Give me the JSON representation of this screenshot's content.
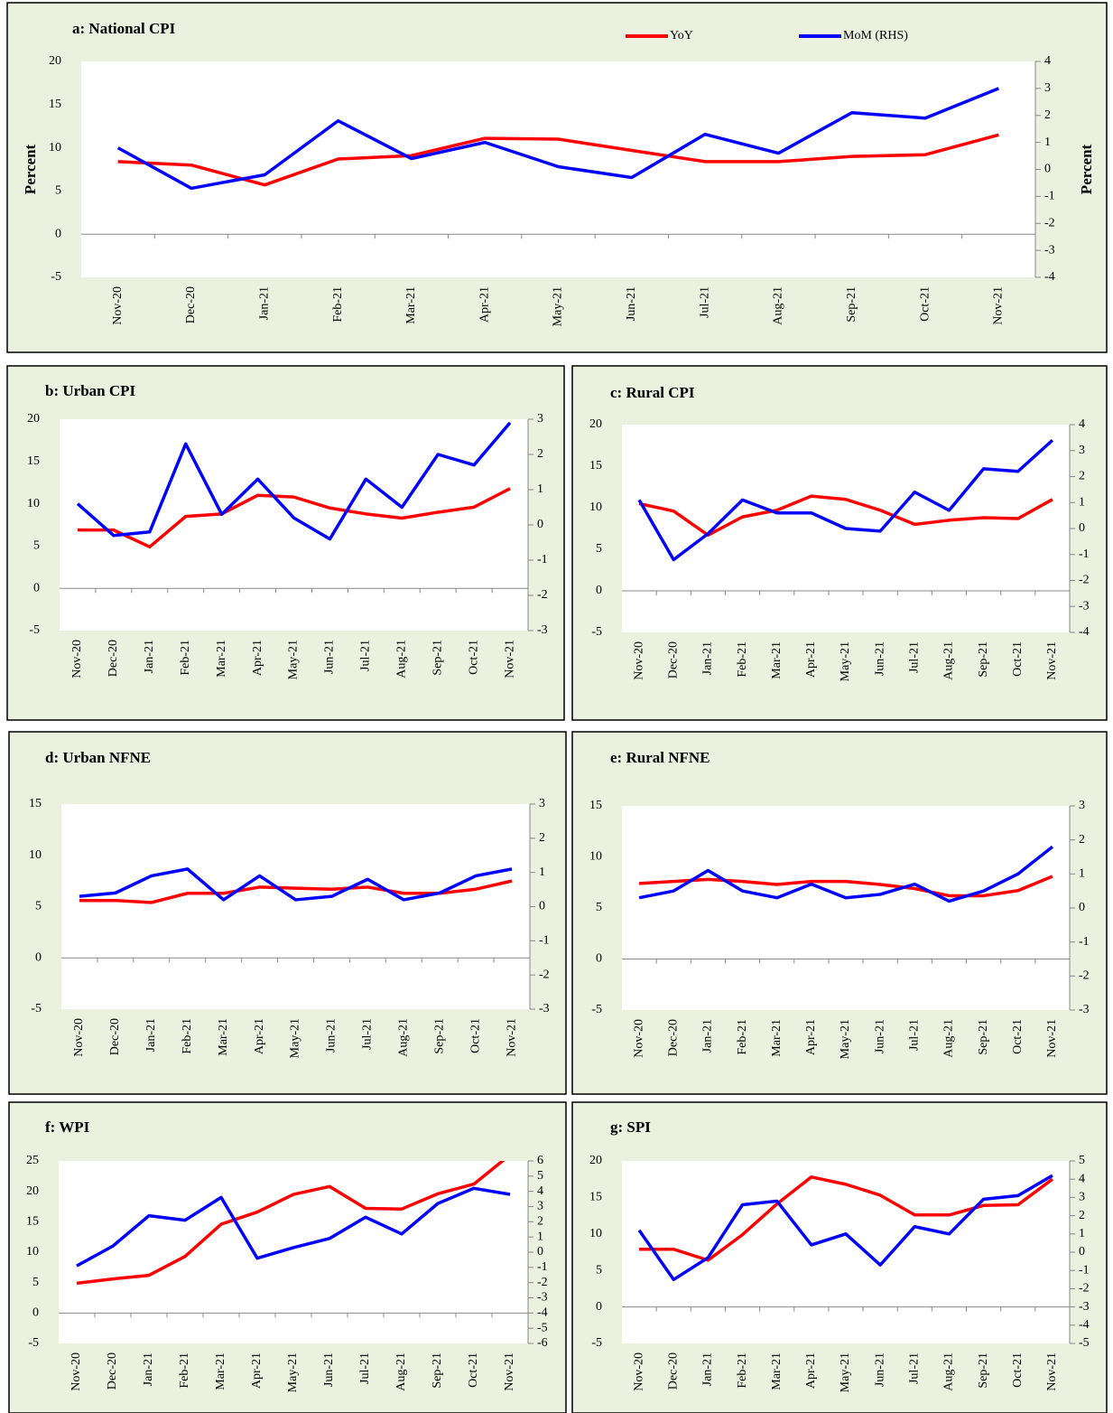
{
  "chart_data": [
    {
      "type": "line",
      "title": "a: National CPI",
      "y_label": "Percent",
      "y2_label": "Percent",
      "legend": "top",
      "categories": [
        "Nov-20",
        "Dec-20",
        "Jan-21",
        "Feb-21",
        "Mar-21",
        "Apr-21",
        "May-21",
        "Jun-21",
        "Jul-21",
        "Aug-21",
        "Sep-21",
        "Oct-21",
        "Nov-21"
      ],
      "series": [
        {
          "name": "YoY",
          "color": "#ff0000",
          "values": [
            8.4,
            8.0,
            5.7,
            8.7,
            9.1,
            11.1,
            11.0,
            9.7,
            8.4,
            8.4,
            9.0,
            9.2,
            11.5
          ]
        },
        {
          "name": "MoM (RHS)",
          "color": "#0000ff",
          "axis": "y2",
          "values": [
            0.8,
            -0.7,
            -0.2,
            1.8,
            0.4,
            1.0,
            0.1,
            -0.3,
            1.3,
            0.6,
            2.1,
            1.9,
            3.0
          ]
        }
      ],
      "ylim": [
        -5,
        20
      ],
      "yticks": [
        -5,
        0,
        5,
        10,
        15,
        20
      ],
      "y2lim": [
        -4,
        4
      ],
      "y2ticks": [
        -4,
        -3,
        -2,
        -1,
        0,
        1,
        2,
        3,
        4
      ]
    },
    {
      "type": "line",
      "title": "b: Urban CPI",
      "categories": [
        "Nov-20",
        "Dec-20",
        "Jan-21",
        "Feb-21",
        "Mar-21",
        "Apr-21",
        "May-21",
        "Jun-21",
        "Jul-21",
        "Aug-21",
        "Sep-21",
        "Oct-21",
        "Nov-21"
      ],
      "series": [
        {
          "color": "#ff0000",
          "values": [
            6.9,
            6.9,
            4.9,
            8.5,
            8.8,
            11.0,
            10.8,
            9.5,
            8.8,
            8.3,
            9.0,
            9.6,
            11.8
          ]
        },
        {
          "color": "#0000ff",
          "axis": "y2",
          "values": [
            0.6,
            -0.3,
            -0.2,
            2.3,
            0.3,
            1.3,
            0.2,
            -0.4,
            1.3,
            0.5,
            2.0,
            1.7,
            2.9
          ]
        }
      ],
      "ylim": [
        -5,
        20
      ],
      "yticks": [
        -5,
        0,
        5,
        10,
        15,
        20
      ],
      "y2lim": [
        -3,
        3
      ],
      "y2ticks": [
        -3,
        -2,
        -1,
        0,
        1,
        2,
        3
      ]
    },
    {
      "type": "line",
      "title": "c: Rural CPI",
      "categories": [
        "Nov-20",
        "Dec-20",
        "Jan-21",
        "Feb-21",
        "Mar-21",
        "Apr-21",
        "May-21",
        "Jun-21",
        "Jul-21",
        "Aug-21",
        "Sep-21",
        "Oct-21",
        "Nov-21"
      ],
      "series": [
        {
          "color": "#ff0000",
          "values": [
            10.5,
            9.6,
            6.7,
            8.9,
            9.7,
            11.4,
            11.0,
            9.7,
            8.0,
            8.5,
            8.8,
            8.7,
            11.0
          ]
        },
        {
          "color": "#0000ff",
          "axis": "y2",
          "values": [
            1.1,
            -1.2,
            -0.2,
            1.1,
            0.6,
            0.6,
            0.0,
            -0.1,
            1.4,
            0.7,
            2.3,
            2.2,
            3.4
          ]
        }
      ],
      "ylim": [
        -5,
        20
      ],
      "yticks": [
        -5,
        0,
        5,
        10,
        15,
        20
      ],
      "y2lim": [
        -4,
        4
      ],
      "y2ticks": [
        -4,
        -3,
        -2,
        -1,
        0,
        1,
        2,
        3,
        4
      ]
    },
    {
      "type": "line",
      "title": "d: Urban NFNE",
      "categories": [
        "Nov-20",
        "Dec-20",
        "Jan-21",
        "Feb-21",
        "Mar-21",
        "Apr-21",
        "May-21",
        "Jun-21",
        "Jul-21",
        "Aug-21",
        "Sep-21",
        "Oct-21",
        "Nov-21"
      ],
      "series": [
        {
          "color": "#ff0000",
          "values": [
            5.6,
            5.6,
            5.4,
            6.3,
            6.3,
            6.9,
            6.8,
            6.7,
            6.9,
            6.3,
            6.3,
            6.7,
            7.5
          ]
        },
        {
          "color": "#0000ff",
          "axis": "y2",
          "values": [
            0.3,
            0.4,
            0.9,
            1.1,
            0.2,
            0.9,
            0.2,
            0.3,
            0.8,
            0.2,
            0.4,
            0.9,
            1.1
          ]
        }
      ],
      "ylim": [
        -5,
        15
      ],
      "yticks": [
        -5,
        0,
        5,
        10,
        15
      ],
      "y2lim": [
        -3,
        3
      ],
      "y2ticks": [
        -3,
        -2,
        -1,
        0,
        1,
        2,
        3
      ]
    },
    {
      "type": "line",
      "title": "e: Rural NFNE",
      "categories": [
        "Nov-20",
        "Dec-20",
        "Jan-21",
        "Feb-21",
        "Mar-21",
        "Apr-21",
        "May-21",
        "Jun-21",
        "Jul-21",
        "Aug-21",
        "Sep-21",
        "Oct-21",
        "Nov-21"
      ],
      "series": [
        {
          "color": "#ff0000",
          "values": [
            7.4,
            7.6,
            7.8,
            7.6,
            7.3,
            7.6,
            7.6,
            7.3,
            6.9,
            6.2,
            6.2,
            6.7,
            8.1
          ]
        },
        {
          "color": "#0000ff",
          "axis": "y2",
          "values": [
            0.3,
            0.5,
            1.1,
            0.5,
            0.3,
            0.7,
            0.3,
            0.4,
            0.7,
            0.2,
            0.5,
            1.0,
            1.8
          ]
        }
      ],
      "ylim": [
        -5,
        15
      ],
      "yticks": [
        -5,
        0,
        5,
        10,
        15
      ],
      "y2lim": [
        -3,
        3
      ],
      "y2ticks": [
        -3,
        -2,
        -1,
        0,
        1,
        2,
        3
      ]
    },
    {
      "type": "line",
      "title": "f: WPI",
      "categories": [
        "Nov-20",
        "Dec-20",
        "Jan-21",
        "Feb-21",
        "Mar-21",
        "Apr-21",
        "May-21",
        "Jun-21",
        "Jul-21",
        "Aug-21",
        "Sep-21",
        "Oct-21",
        "Nov-21"
      ],
      "series": [
        {
          "color": "#ff0000",
          "values": [
            4.9,
            5.6,
            6.2,
            9.3,
            14.6,
            16.6,
            19.5,
            20.8,
            17.2,
            17.1,
            19.6,
            21.2,
            26.0
          ]
        },
        {
          "color": "#0000ff",
          "axis": "y2",
          "values": [
            -0.9,
            0.4,
            2.4,
            2.1,
            3.6,
            -0.4,
            0.3,
            0.9,
            2.3,
            1.2,
            3.2,
            4.2,
            3.8
          ]
        }
      ],
      "ylim": [
        -5,
        25
      ],
      "yticks": [
        -5,
        0,
        5,
        10,
        15,
        20,
        25
      ],
      "y2lim": [
        -6,
        6
      ],
      "y2ticks": [
        -6,
        -5,
        -4,
        -3,
        -2,
        -1,
        0,
        1,
        2,
        3,
        4,
        5,
        6
      ]
    },
    {
      "type": "line",
      "title": "g: SPI",
      "categories": [
        "Nov-20",
        "Dec-20",
        "Jan-21",
        "Feb-21",
        "Mar-21",
        "Apr-21",
        "May-21",
        "Jun-21",
        "Jul-21",
        "Aug-21",
        "Sep-21",
        "Oct-21",
        "Nov-21"
      ],
      "series": [
        {
          "color": "#ff0000",
          "values": [
            7.9,
            7.9,
            6.4,
            9.9,
            14.1,
            17.8,
            16.8,
            15.3,
            12.6,
            12.6,
            13.9,
            14.0,
            17.5
          ]
        },
        {
          "color": "#0000ff",
          "axis": "y2",
          "values": [
            1.2,
            -1.5,
            -0.3,
            2.6,
            2.8,
            0.4,
            1.0,
            -0.7,
            1.4,
            1.0,
            2.9,
            3.1,
            4.2
          ]
        }
      ],
      "ylim": [
        -5,
        20
      ],
      "yticks": [
        -5,
        0,
        5,
        10,
        15,
        20
      ],
      "y2lim": [
        -5,
        5
      ],
      "y2ticks": [
        -5,
        -4,
        -3,
        -2,
        -1,
        0,
        1,
        2,
        3,
        4,
        5
      ]
    }
  ]
}
